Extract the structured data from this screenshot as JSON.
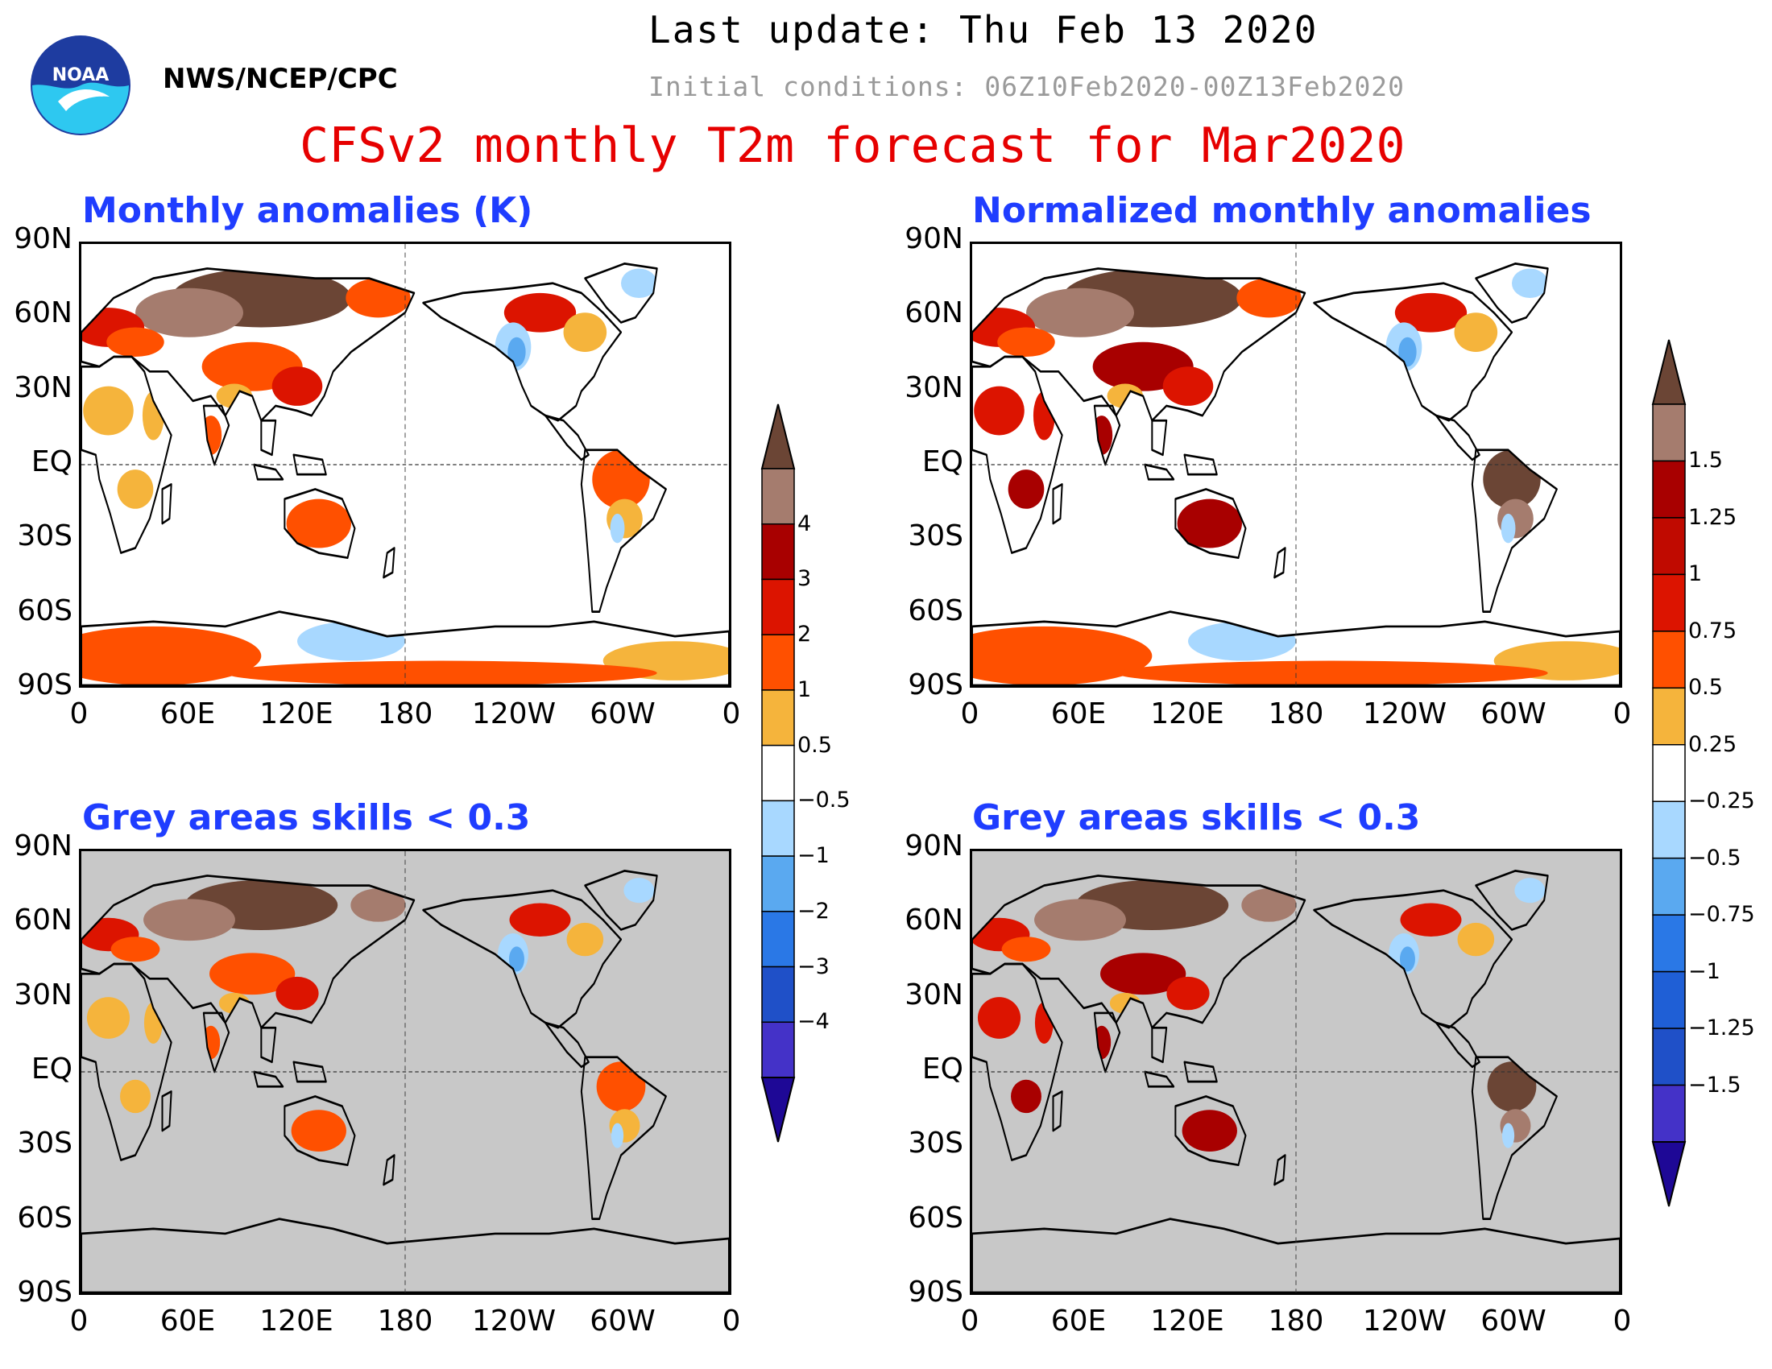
{
  "header": {
    "agency": "NWS/NCEP/CPC",
    "logo_text": "NOAA",
    "last_update": "Last update: Thu Feb 13 2020",
    "initial_conditions": "Initial conditions: 06Z10Feb2020-00Z13Feb2020",
    "title": "CFSv2 monthly T2m forecast for Mar2020"
  },
  "panels": {
    "top_left_title": "Monthly anomalies (K)",
    "top_right_title": "Normalized monthly anomalies",
    "bottom_left_title": "Grey areas skills < 0.3",
    "bottom_right_title": "Grey areas skills < 0.3"
  },
  "axes": {
    "lat_ticks": [
      "90N",
      "60N",
      "30N",
      "EQ",
      "30S",
      "60S",
      "90S"
    ],
    "lon_ticks": [
      "0",
      "60E",
      "120E",
      "180",
      "120W",
      "60W",
      "0"
    ]
  },
  "colorbars": {
    "anomaly": {
      "labels": [
        "4",
        "3",
        "2",
        "1",
        "0.5",
        "−0.5",
        "−1",
        "−2",
        "−3",
        "−4"
      ],
      "colors": [
        "#6b4535",
        "#a57c6e",
        "#a80000",
        "#dc1400",
        "#ff5000",
        "#f5b43c",
        "#ffffff",
        "#a8d8ff",
        "#5aa9f0",
        "#2a78e6",
        "#1f50c8",
        "#4432c8",
        "#1e0896"
      ]
    },
    "normalized": {
      "labels": [
        "1.5",
        "1.25",
        "1",
        "0.75",
        "0.5",
        "0.25",
        "−0.25",
        "−0.5",
        "−0.75",
        "−1",
        "−1.25",
        "−1.5"
      ],
      "colors": [
        "#6b4535",
        "#a57c6e",
        "#a80000",
        "#c00a00",
        "#dc1400",
        "#ff5000",
        "#f5b43c",
        "#ffffff",
        "#a8d8ff",
        "#5aa9f0",
        "#2a78e6",
        "#1f5fd6",
        "#1f50c8",
        "#4432c8",
        "#1e0896"
      ]
    }
  },
  "map_colors": {
    "ocean": "#ffffff",
    "low_skill_grey": "#c8c8c8",
    "brown": "#6b4535",
    "light_brown": "#a57c6e",
    "dark_red": "#a80000",
    "red": "#dc1400",
    "orange_red": "#ff5000",
    "orange": "#f5b43c",
    "light_blue": "#a8d8ff",
    "blue": "#5aa9f0"
  }
}
